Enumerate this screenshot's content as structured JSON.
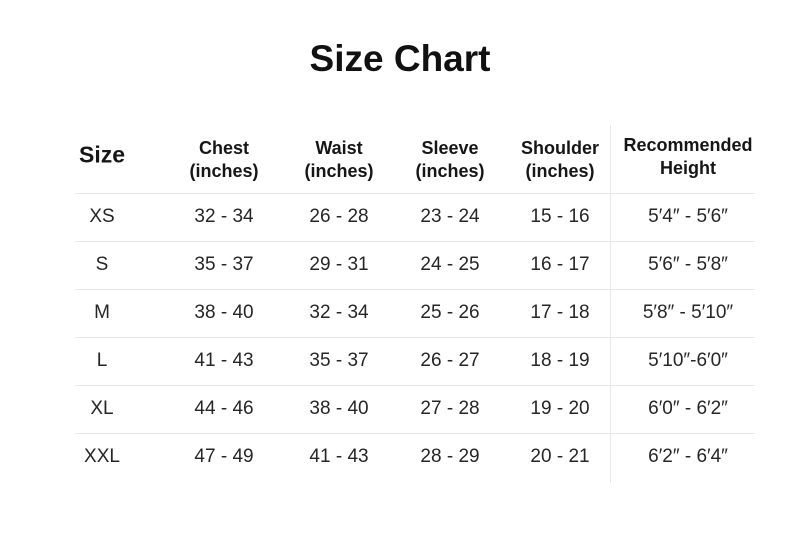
{
  "title": "Size Chart",
  "columns": [
    {
      "line1": "Size",
      "line2": ""
    },
    {
      "line1": "Chest",
      "line2": "(inches)"
    },
    {
      "line1": "Waist",
      "line2": "(inches)"
    },
    {
      "line1": "Sleeve",
      "line2": "(inches)"
    },
    {
      "line1": "Shoulder",
      "line2": "(inches)"
    },
    {
      "line1": "Recommended",
      "line2": "Height"
    }
  ],
  "rows": [
    [
      "XS",
      "32 - 34",
      "26 - 28",
      "23 - 24",
      "15 - 16",
      "5′4″ - 5′6″"
    ],
    [
      "S",
      "35 - 37",
      "29 - 31",
      "24 - 25",
      "16 - 17",
      "5′6″ - 5′8″"
    ],
    [
      "M",
      "38 - 40",
      "32 - 34",
      "25 - 26",
      "17 - 18",
      "5′8″ - 5′10″"
    ],
    [
      "L",
      "41 - 43",
      "35 - 37",
      "26 - 27",
      "18 - 19",
      "5′10″-6′0″"
    ],
    [
      "XL",
      "44 - 46",
      "38 - 40",
      "27 - 28",
      "19 - 20",
      "6′0″ - 6′2″"
    ],
    [
      "XXL",
      "47 - 49",
      "41 - 43",
      "28 - 29",
      "20 - 21",
      "6′2″ - 6′4″"
    ]
  ]
}
